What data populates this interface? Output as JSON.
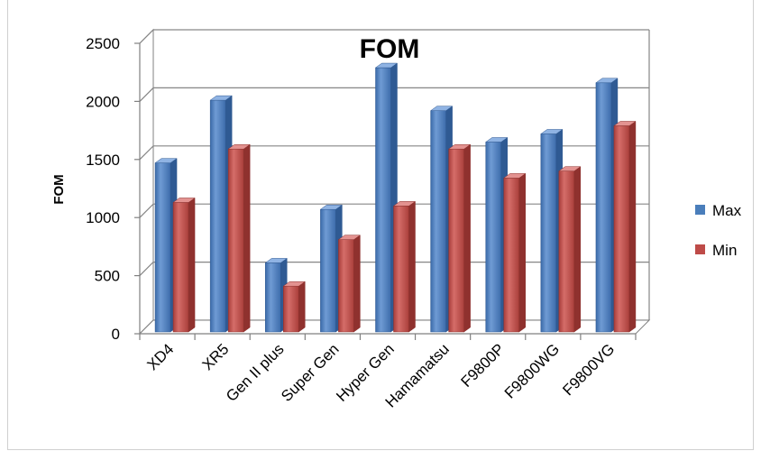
{
  "chart_data": {
    "type": "bar",
    "style": "3d-clustered-column",
    "title": "FOM",
    "ylabel": "FOM",
    "xlabel": "",
    "ylim": [
      0,
      2500
    ],
    "yticks": [
      0,
      500,
      1000,
      1500,
      2000,
      2500
    ],
    "grid": true,
    "legend_position": "right",
    "categories": [
      "XD4",
      "XR5",
      "Gen II plus",
      "Super Gen",
      "Hyper Gen",
      "Hamamatsu",
      "F9800P",
      "F9800WG",
      "F9800VG"
    ],
    "series": [
      {
        "name": "Max",
        "color": "#4a7ebb",
        "values": [
          1470,
          2010,
          610,
          1070,
          2290,
          1920,
          1650,
          1720,
          2160
        ]
      },
      {
        "name": "Min",
        "color": "#be4b48",
        "values": [
          1130,
          1590,
          410,
          810,
          1100,
          1590,
          1340,
          1400,
          1790
        ]
      }
    ]
  }
}
